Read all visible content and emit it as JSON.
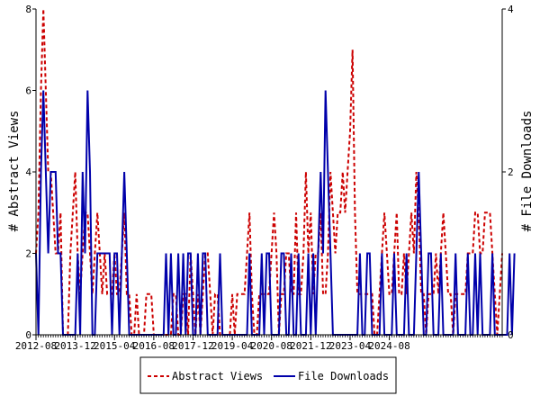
{
  "chart_data": {
    "type": "line",
    "title": "",
    "ylabel_left": "# Abstract Views",
    "ylabel_right": "# File Downloads",
    "ylim_left": [
      0,
      8
    ],
    "ylim_right": [
      0,
      4
    ],
    "yticks_left": [
      0,
      2,
      4,
      6,
      8
    ],
    "yticks_right": [
      0,
      2,
      4
    ],
    "x_tick_labels": [
      "2012-08",
      "2013-12",
      "2015-04",
      "2016-08",
      "2017-12",
      "2019-04",
      "2020-08",
      "2021-12",
      "2023-04",
      "2024-08"
    ],
    "legend_position": "bottom",
    "grid": false,
    "series": [
      {
        "name": "Abstract Views",
        "axis": "left",
        "color": "#cc0000",
        "style": "dashed",
        "values": [
          2,
          3,
          6,
          8,
          6,
          4,
          4,
          3,
          2,
          2,
          3,
          0,
          0,
          0,
          2,
          3,
          4,
          2,
          1,
          2,
          3,
          3,
          2,
          1,
          2,
          3,
          2,
          1,
          2,
          1,
          1,
          1,
          2,
          1,
          1,
          2,
          3,
          1,
          1,
          0,
          0,
          1,
          0,
          0,
          0,
          1,
          1,
          1,
          0,
          0,
          0,
          0,
          0,
          0,
          0,
          0,
          1,
          1,
          0,
          0,
          1,
          1,
          0,
          2,
          1,
          0,
          1,
          0,
          1,
          2,
          2,
          1,
          0,
          1,
          1,
          0,
          0,
          0,
          0,
          0,
          1,
          0,
          1,
          1,
          1,
          1,
          2,
          3,
          1,
          0,
          0,
          1,
          1,
          1,
          1,
          1,
          2,
          3,
          2,
          0,
          1,
          1,
          2,
          2,
          1,
          1,
          3,
          1,
          1,
          2,
          4,
          2,
          3,
          1,
          2,
          2,
          3,
          1,
          1,
          2,
          4,
          3,
          2,
          3,
          3,
          4,
          3,
          4,
          5,
          7,
          3,
          1,
          1,
          1,
          1,
          1,
          1,
          1,
          0,
          0,
          1,
          2,
          3,
          2,
          1,
          1,
          2,
          3,
          1,
          1,
          2,
          1,
          2,
          3,
          2,
          4,
          3,
          1,
          1,
          0,
          1,
          1,
          1,
          2,
          1,
          2,
          3,
          2,
          1,
          1,
          0,
          1,
          1,
          1,
          1,
          1,
          2,
          2,
          2,
          3,
          3,
          2,
          2,
          3,
          3,
          3,
          2,
          1,
          0,
          1,
          2
        ]
      },
      {
        "name": "File Downloads",
        "axis": "right",
        "color": "#0000aa",
        "style": "solid",
        "values": [
          1,
          0,
          2,
          3,
          2,
          1,
          2,
          2,
          2,
          1,
          1,
          0,
          0,
          0,
          0,
          0,
          0,
          1,
          0,
          2,
          1,
          3,
          2,
          0,
          0,
          1,
          1,
          1,
          1,
          1,
          1,
          0,
          1,
          1,
          0,
          1,
          2,
          1,
          0,
          0,
          0,
          0,
          0,
          0,
          0,
          0,
          0,
          0,
          0,
          0,
          0,
          0,
          0,
          1,
          0,
          1,
          0,
          0,
          1,
          0,
          1,
          0,
          1,
          1,
          0,
          0,
          1,
          0,
          1,
          1,
          0,
          0,
          0,
          0,
          0,
          1,
          0,
          0,
          0,
          0,
          0,
          0,
          0,
          0,
          0,
          0,
          0,
          1,
          0,
          0,
          0,
          0,
          1,
          0,
          1,
          1,
          0,
          0,
          0,
          0,
          1,
          1,
          0,
          0,
          1,
          0,
          0,
          1,
          0,
          0,
          0,
          1,
          0,
          1,
          0,
          1,
          2,
          1,
          3,
          2,
          1,
          0,
          0,
          0,
          0,
          0,
          0,
          0,
          0,
          0,
          0,
          0,
          1,
          0,
          0,
          1,
          1,
          0,
          0,
          0,
          0,
          1,
          0,
          0,
          0,
          0,
          1,
          0,
          0,
          0,
          0,
          1,
          0,
          0,
          0,
          1,
          2,
          1,
          0,
          0,
          1,
          1,
          0,
          0,
          0,
          1,
          0,
          0,
          0,
          0,
          0,
          1,
          0,
          0,
          0,
          0,
          1,
          0,
          0,
          1,
          0,
          1,
          0,
          0,
          0,
          0,
          1,
          0,
          0,
          0,
          0,
          0,
          0,
          1,
          0,
          1
        ]
      }
    ]
  }
}
